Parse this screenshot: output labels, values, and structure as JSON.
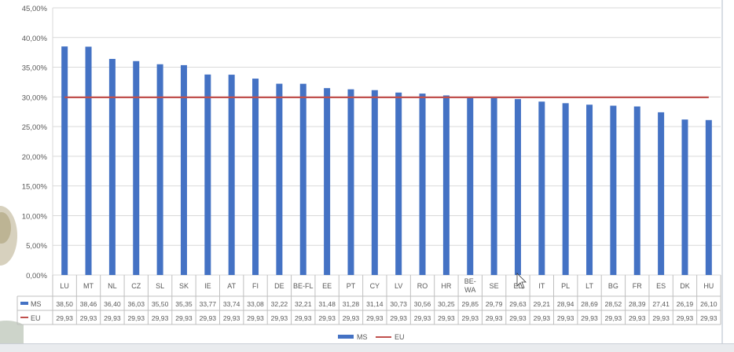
{
  "colors": {
    "ms_bar": "#4472c4",
    "eu_line": "#c0504d",
    "grid": "#d9d9d9",
    "axis_text": "#595959",
    "table_border": "#bfbfbf"
  },
  "chart_data": {
    "type": "bar",
    "title": "",
    "xlabel": "",
    "ylabel": "",
    "ylim": [
      0,
      45
    ],
    "y_ticks": [
      "0,00%",
      "5,00%",
      "10,00%",
      "15,00%",
      "20,00%",
      "25,00%",
      "30,00%",
      "35,00%",
      "40,00%",
      "45,00%"
    ],
    "grid": true,
    "legend_position": "bottom",
    "data_table": true,
    "categories": [
      "LU",
      "MT",
      "NL",
      "CZ",
      "SL",
      "SK",
      "IE",
      "AT",
      "FI",
      "DE",
      "BE-FL",
      "EE",
      "PT",
      "CY",
      "LV",
      "RO",
      "HR",
      "BE-\nWA",
      "SE",
      "EL",
      "IT",
      "PL",
      "LT",
      "BG",
      "FR",
      "ES",
      "DK",
      "HU"
    ],
    "series": [
      {
        "name": "MS",
        "type": "bar",
        "color": "#4472c4",
        "values": [
          38.5,
          38.46,
          36.4,
          36.03,
          35.5,
          35.35,
          33.77,
          33.74,
          33.08,
          32.22,
          32.21,
          31.48,
          31.28,
          31.14,
          30.73,
          30.56,
          30.25,
          29.85,
          29.79,
          29.63,
          29.21,
          28.94,
          28.69,
          28.52,
          28.39,
          27.41,
          26.19,
          26.1
        ],
        "labels": [
          "38,50",
          "38,46",
          "36,40",
          "36,03",
          "35,50",
          "35,35",
          "33,77",
          "33,74",
          "33,08",
          "32,22",
          "32,21",
          "31,48",
          "31,28",
          "31,14",
          "30,73",
          "30,56",
          "30,25",
          "29,85",
          "29,79",
          "29,63",
          "29,21",
          "28,94",
          "28,69",
          "28,52",
          "28,39",
          "27,41",
          "26,19",
          "26,10"
        ]
      },
      {
        "name": "EU",
        "type": "line",
        "color": "#c0504d",
        "values": [
          29.93,
          29.93,
          29.93,
          29.93,
          29.93,
          29.93,
          29.93,
          29.93,
          29.93,
          29.93,
          29.93,
          29.93,
          29.93,
          29.93,
          29.93,
          29.93,
          29.93,
          29.93,
          29.93,
          29.93,
          29.93,
          29.93,
          29.93,
          29.93,
          29.93,
          29.93,
          29.93,
          29.93
        ],
        "labels": [
          "29,93",
          "29,93",
          "29,93",
          "29,93",
          "29,93",
          "29,93",
          "29,93",
          "29,93",
          "29,93",
          "29,93",
          "29,93",
          "29,93",
          "29,93",
          "29,93",
          "29,93",
          "29,93",
          "29,93",
          "29,93",
          "29,93",
          "29,93",
          "29,93",
          "29,93",
          "29,93",
          "29,93",
          "29,93",
          "29,93",
          "29,93",
          "29,93"
        ]
      }
    ],
    "legend": [
      "MS",
      "EU"
    ]
  }
}
